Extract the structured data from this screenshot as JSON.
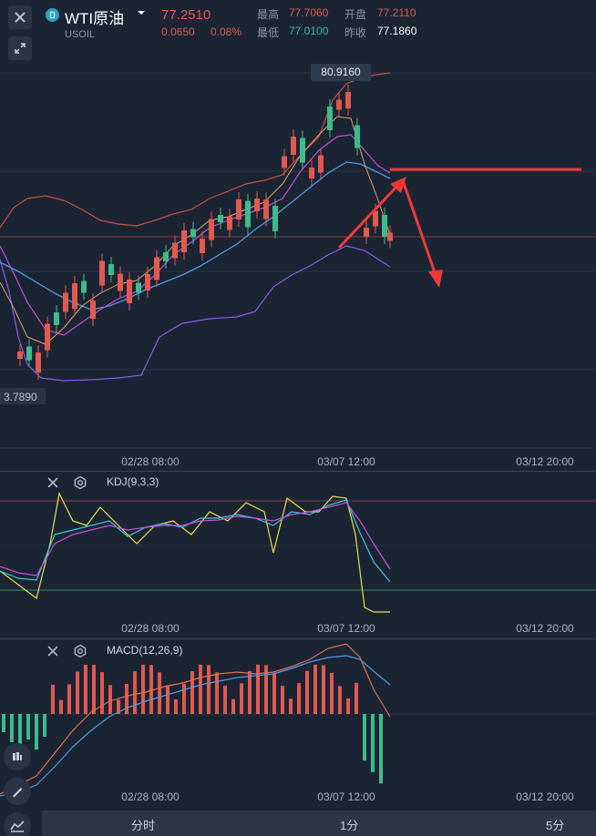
{
  "header": {
    "symbol_name": "WTI原油",
    "symbol_code": "USOIL",
    "last_price": "77.2510",
    "change": "0.0650",
    "change_pct": "0.08%",
    "high_label": "最高",
    "high_value": "77.7060",
    "open_label": "开盘",
    "open_value": "77.2110",
    "low_label": "最低",
    "low_value": "77.0100",
    "prev_close_label": "昨收",
    "prev_close_value": "77.1860",
    "icons": [
      "close-icon",
      "expand-icon",
      "caret-down-icon"
    ]
  },
  "main_chart": {
    "high_tag": "80.9160",
    "low_tag": "3.7890",
    "x_labels": [
      "02/28 08:00",
      "03/07 12:00",
      "03/12 20:00"
    ]
  },
  "kdj": {
    "label": "KDJ(9,3,3)",
    "x_labels": [
      "02/28 08:00",
      "03/07 12:00",
      "03/12 20:00"
    ]
  },
  "macd": {
    "label": "MACD(12,26,9)",
    "x_labels": [
      "02/28 08:00",
      "03/07 12:00",
      "03/12 20:00"
    ]
  },
  "timeframes": [
    "分时",
    "1分",
    "5分"
  ],
  "colors": {
    "up": "#e05a4f",
    "down": "#3dbb8a",
    "mid_band": "#4e9ae8",
    "ma_magenta": "#c84fd8",
    "boll_purple": "#8a5ce8",
    "annotation": "#f03a3a",
    "background": "#1b2433"
  }
}
